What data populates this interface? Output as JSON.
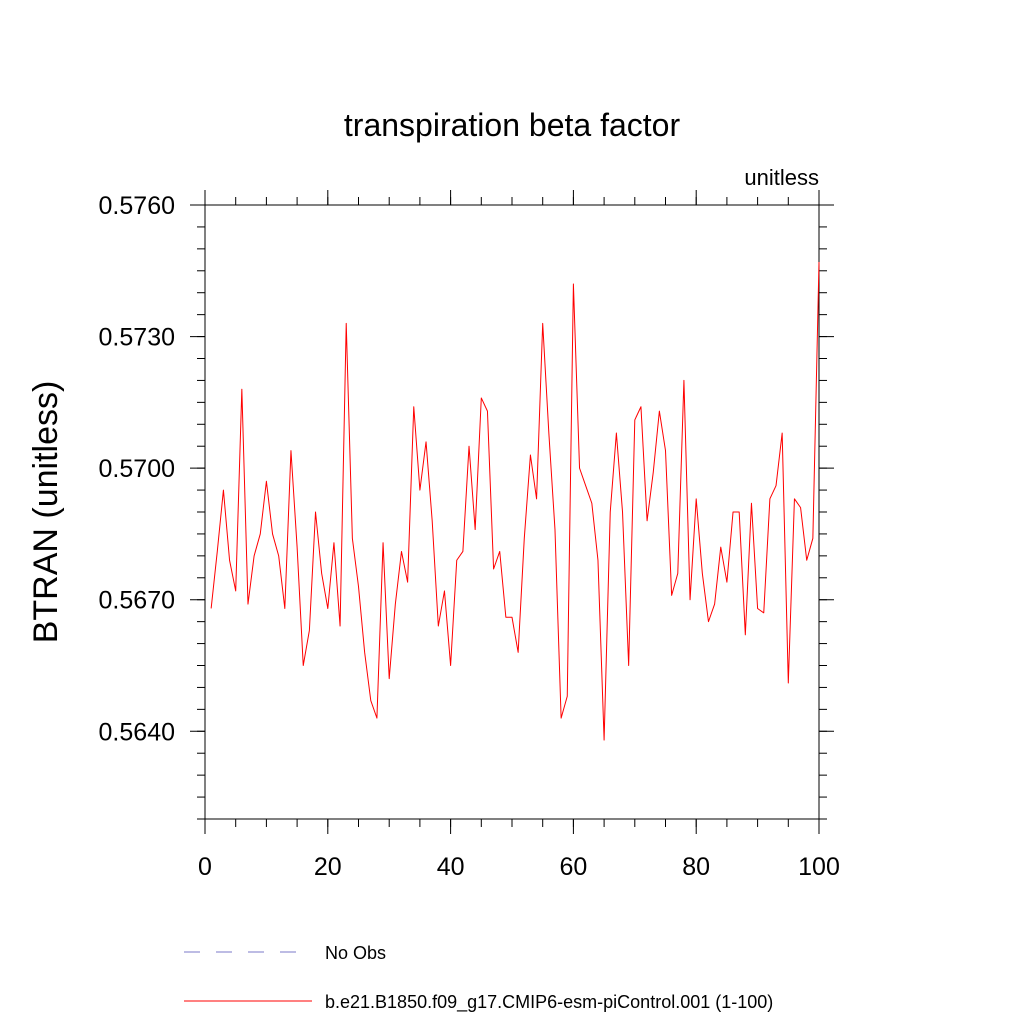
{
  "chart_data": {
    "type": "line",
    "title": "transpiration beta factor",
    "subtitle_right": "unitless",
    "xlabel": "",
    "ylabel": "BTRAN  (unitless)",
    "xlim": [
      0,
      100
    ],
    "ylim": [
      0.562,
      0.576
    ],
    "x_ticks": [
      0,
      20,
      40,
      60,
      80,
      100
    ],
    "x_tick_labels": [
      "0",
      "20",
      "40",
      "60",
      "80",
      "100"
    ],
    "y_ticks": [
      0.564,
      0.567,
      0.57,
      0.573,
      0.576
    ],
    "y_tick_labels": [
      "0.5640",
      "0.5670",
      "0.5700",
      "0.5730",
      "0.5760"
    ],
    "y_minor_step": 0.0005,
    "grid": false,
    "legend_position": "bottom",
    "legend": [
      {
        "label": "No Obs",
        "color": "#7b78c8",
        "dash": "dashed"
      },
      {
        "label": "b.e21.B1850.f09_g17.CMIP6-esm-piControl.001 (1-100)",
        "color": "#ff0000",
        "dash": "solid"
      }
    ],
    "series": [
      {
        "name": "b.e21.B1850.f09_g17.CMIP6-esm-piControl.001 (1-100)",
        "color": "#ff0000",
        "x": [
          1,
          2,
          3,
          4,
          5,
          6,
          7,
          8,
          9,
          10,
          11,
          12,
          13,
          14,
          15,
          16,
          17,
          18,
          19,
          20,
          21,
          22,
          23,
          24,
          25,
          26,
          27,
          28,
          29,
          30,
          31,
          32,
          33,
          34,
          35,
          36,
          37,
          38,
          39,
          40,
          41,
          42,
          43,
          44,
          45,
          46,
          47,
          48,
          49,
          50,
          51,
          52,
          53,
          54,
          55,
          56,
          57,
          58,
          59,
          60,
          61,
          62,
          63,
          64,
          65,
          66,
          67,
          68,
          69,
          70,
          71,
          72,
          73,
          74,
          75,
          76,
          77,
          78,
          79,
          80,
          81,
          82,
          83,
          84,
          85,
          86,
          87,
          88,
          89,
          90,
          91,
          92,
          93,
          94,
          95,
          96,
          97,
          98,
          99,
          100
        ],
        "values": [
          0.5668,
          0.5681,
          0.5695,
          0.5679,
          0.5672,
          0.5718,
          0.5669,
          0.568,
          0.5685,
          0.5697,
          0.5685,
          0.568,
          0.5668,
          0.5704,
          0.5682,
          0.5655,
          0.5663,
          0.569,
          0.5676,
          0.5668,
          0.5683,
          0.5664,
          0.5733,
          0.5684,
          0.5673,
          0.5658,
          0.5647,
          0.5643,
          0.5683,
          0.5652,
          0.5669,
          0.5681,
          0.5674,
          0.5714,
          0.5695,
          0.5706,
          0.5688,
          0.5664,
          0.5672,
          0.5655,
          0.5679,
          0.5681,
          0.5705,
          0.5686,
          0.5716,
          0.5713,
          0.5677,
          0.5681,
          0.5666,
          0.5666,
          0.5658,
          0.5684,
          0.5703,
          0.5693,
          0.5733,
          0.5708,
          0.5686,
          0.5643,
          0.5648,
          0.5742,
          0.57,
          0.5696,
          0.5692,
          0.5679,
          0.5638,
          0.569,
          0.5708,
          0.569,
          0.5655,
          0.5711,
          0.5714,
          0.5688,
          0.5699,
          0.5713,
          0.5704,
          0.5671,
          0.5676,
          0.572,
          0.567,
          0.5693,
          0.5676,
          0.5665,
          0.5669,
          0.5682,
          0.5674,
          0.569,
          0.569,
          0.5662,
          0.5692,
          0.5668,
          0.5667,
          0.5693,
          0.5696,
          0.5708,
          0.5651,
          0.5693,
          0.5691,
          0.5679,
          0.5684,
          0.5747
        ]
      }
    ]
  }
}
